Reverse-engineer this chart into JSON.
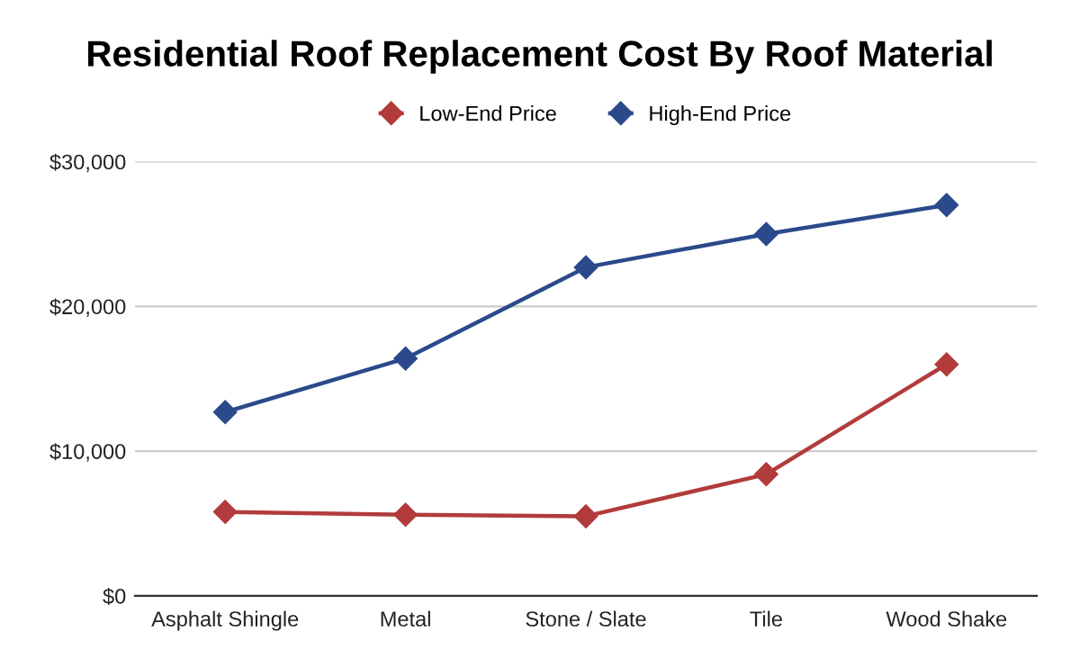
{
  "chart_data": {
    "type": "line",
    "title": "Residential Roof Replacement Cost By Roof Material",
    "categories": [
      "Asphalt Shingle",
      "Metal",
      "Stone / Slate",
      "Tile",
      "Wood Shake"
    ],
    "series": [
      {
        "name": "Low-End Price",
        "color": "#b23b3b",
        "values": [
          5800,
          5600,
          5500,
          8400,
          16000
        ]
      },
      {
        "name": "High-End Price",
        "color": "#2b4a8b",
        "values": [
          12700,
          16400,
          22700,
          25000,
          27000
        ]
      }
    ],
    "ylim": [
      0,
      30000
    ],
    "yticks": [
      {
        "value": 0,
        "label": "$0"
      },
      {
        "value": 10000,
        "label": "$10,000"
      },
      {
        "value": 20000,
        "label": "$20,000"
      },
      {
        "value": 30000,
        "label": "$30,000"
      }
    ],
    "grid": "y",
    "legend": "top",
    "marker": "diamond",
    "line_style": "solid"
  }
}
